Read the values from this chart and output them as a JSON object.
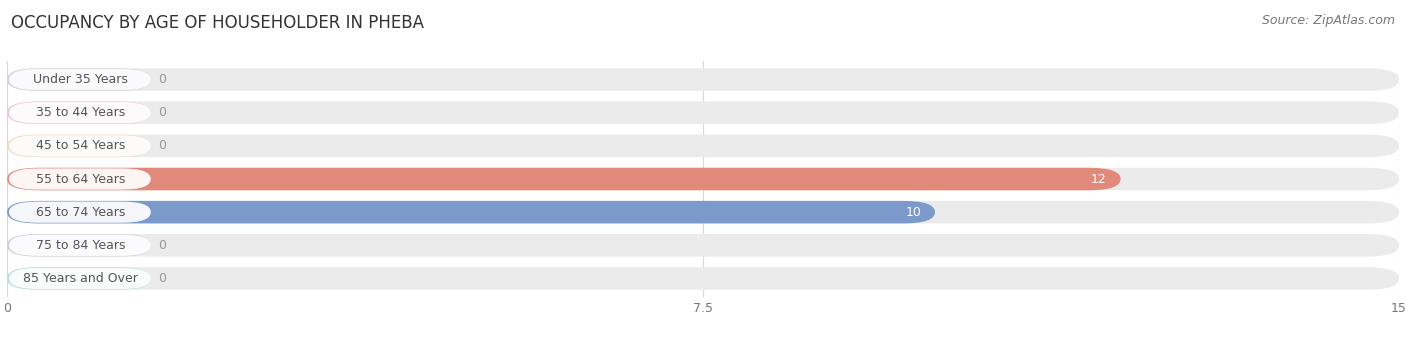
{
  "title": "OCCUPANCY BY AGE OF HOUSEHOLDER IN PHEBA",
  "source": "Source: ZipAtlas.com",
  "categories": [
    "Under 35 Years",
    "35 to 44 Years",
    "45 to 54 Years",
    "55 to 64 Years",
    "65 to 74 Years",
    "75 to 84 Years",
    "85 Years and Over"
  ],
  "values": [
    0,
    0,
    0,
    12,
    10,
    0,
    0
  ],
  "bar_colors": [
    "#b0b0d8",
    "#f0a0b8",
    "#f5c890",
    "#e08070",
    "#7090c8",
    "#c0a8d0",
    "#7ececa"
  ],
  "bar_bg_color": "#ebebeb",
  "bar_white_color": "#ffffff",
  "xlim": [
    0,
    15
  ],
  "xticks": [
    0,
    7.5,
    15
  ],
  "label_color_inside": "#ffffff",
  "label_color_outside": "#999999",
  "title_fontsize": 12,
  "source_fontsize": 9,
  "label_fontsize": 9,
  "category_fontsize": 9,
  "background_color": "#ffffff",
  "grid_color": "#d8d8d8",
  "text_color": "#555555"
}
